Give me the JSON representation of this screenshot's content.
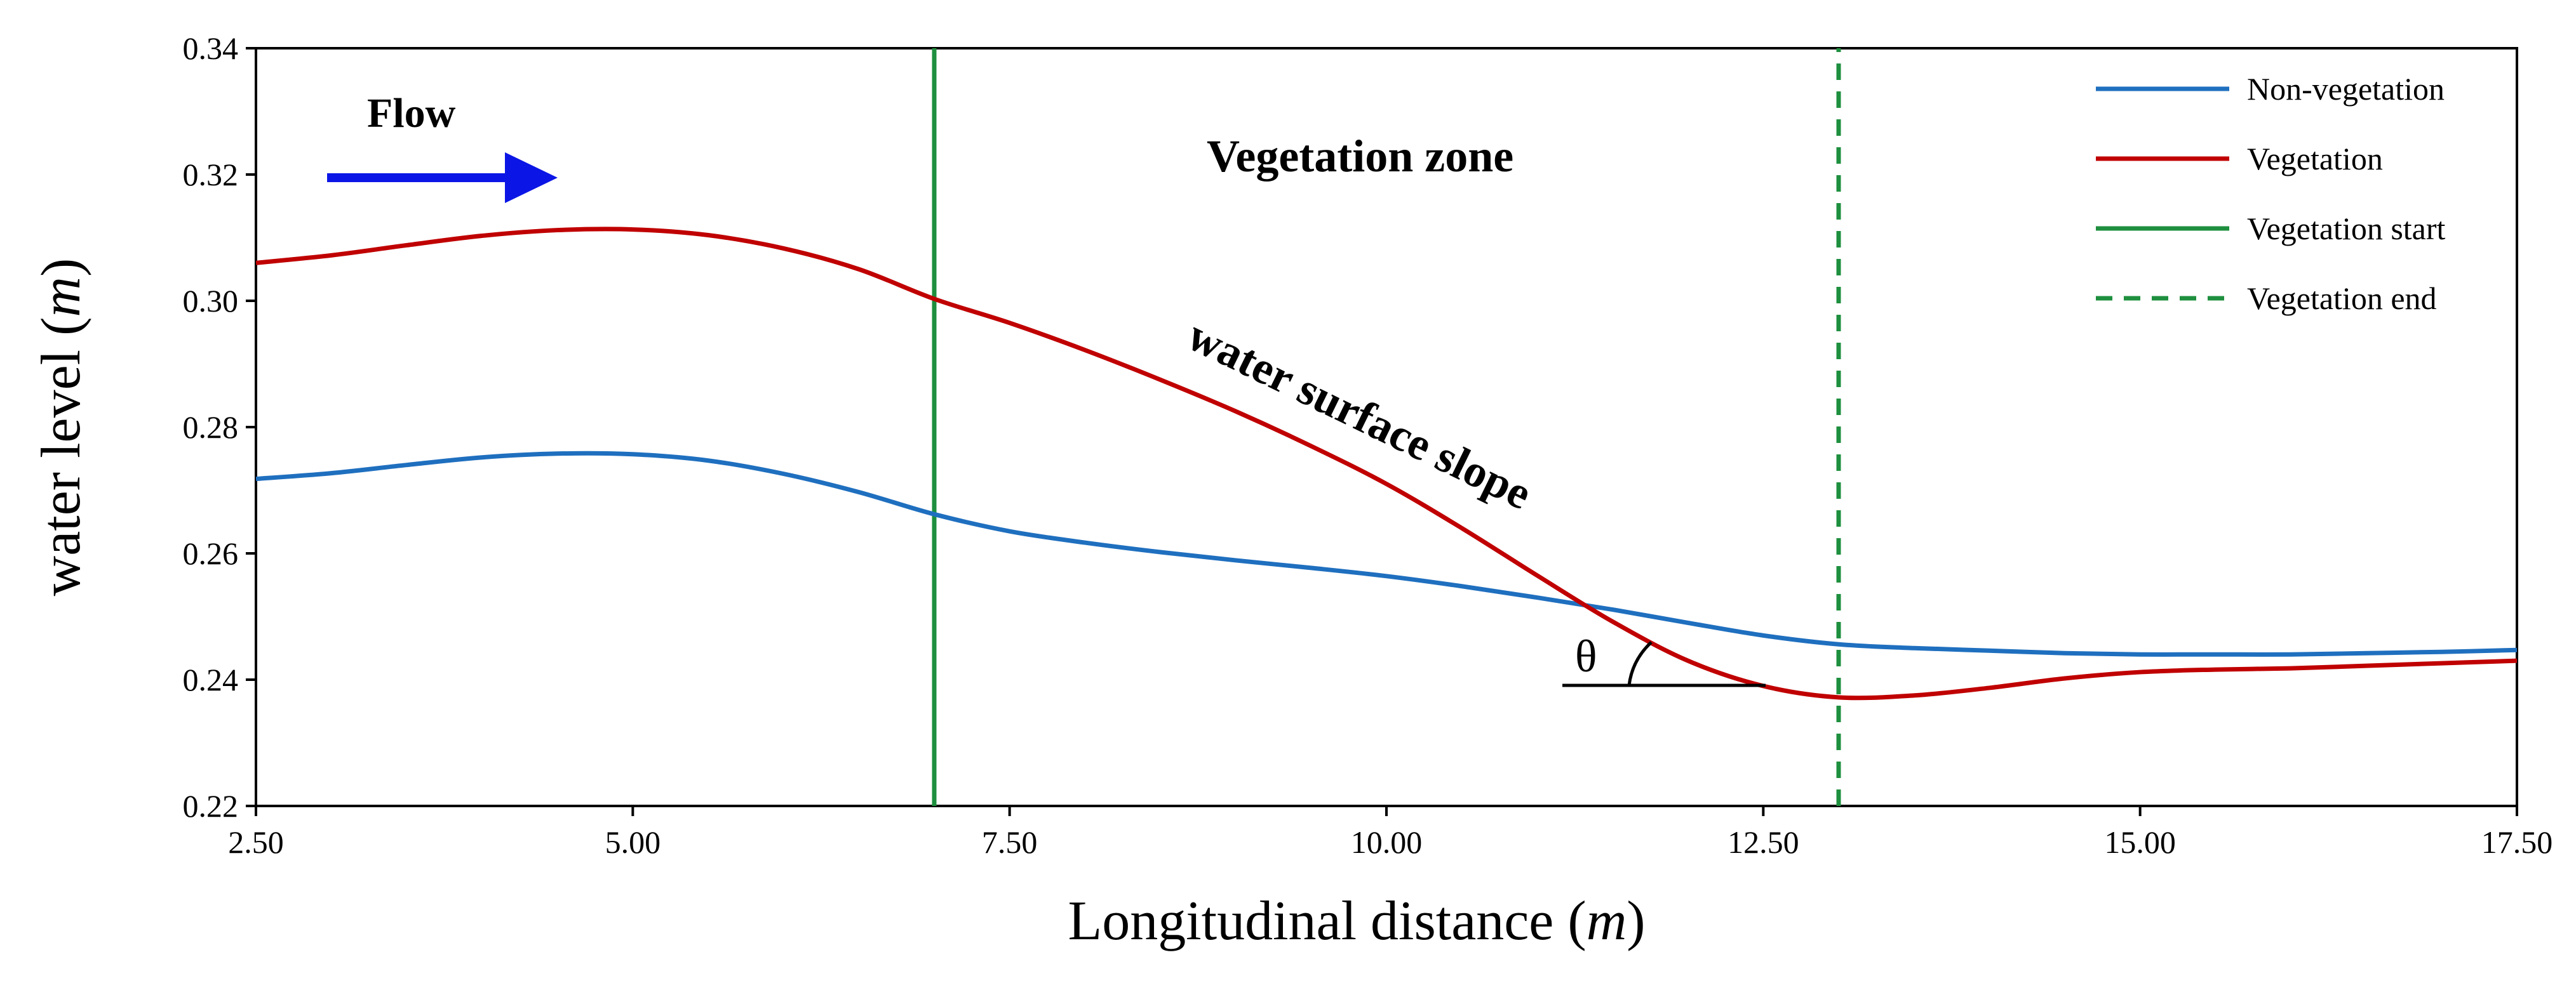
{
  "chart_data": {
    "type": "line",
    "xlabel": "Longitudinal distance",
    "xlabel_unit": "m",
    "ylabel": "water level",
    "ylabel_unit": "m",
    "xlim": [
      2.5,
      17.5
    ],
    "ylim": [
      0.22,
      0.34
    ],
    "x_ticks": [
      2.5,
      5.0,
      7.5,
      10.0,
      12.5,
      15.0,
      17.5
    ],
    "x_tick_labels": [
      "2.50",
      "5.00",
      "7.50",
      "10.00",
      "12.50",
      "15.00",
      "17.50"
    ],
    "y_ticks": [
      0.22,
      0.24,
      0.26,
      0.28,
      0.3,
      0.32,
      0.34
    ],
    "y_tick_labels": [
      "0.22",
      "0.24",
      "0.26",
      "0.28",
      "0.30",
      "0.32",
      "0.34"
    ],
    "grid": false,
    "legend_position": "top-right",
    "series": [
      {
        "name": "Non-vegetation",
        "color": "#1f6fbf",
        "style": "solid",
        "x": [
          2.5,
          3.0,
          3.5,
          4.0,
          4.5,
          5.0,
          5.5,
          6.0,
          6.5,
          7.0,
          7.5,
          8.0,
          8.5,
          9.0,
          9.5,
          10.0,
          10.5,
          11.0,
          11.5,
          12.0,
          12.5,
          13.0,
          13.5,
          14.0,
          14.5,
          15.0,
          15.5,
          16.0,
          16.5,
          17.0,
          17.5
        ],
        "y": [
          0.2718,
          0.2727,
          0.274,
          0.2752,
          0.2758,
          0.2757,
          0.2747,
          0.2726,
          0.2697,
          0.2662,
          0.2635,
          0.2617,
          0.2602,
          0.2589,
          0.2577,
          0.2564,
          0.2548,
          0.253,
          0.2511,
          0.249,
          0.247,
          0.2456,
          0.245,
          0.2446,
          0.2442,
          0.244,
          0.244,
          0.244,
          0.2442,
          0.2444,
          0.2447
        ]
      },
      {
        "name": "Vegetation",
        "color": "#c00000",
        "style": "solid",
        "x": [
          2.5,
          3.0,
          3.5,
          4.0,
          4.5,
          5.0,
          5.5,
          6.0,
          6.5,
          7.0,
          7.5,
          8.0,
          8.5,
          9.0,
          9.5,
          10.0,
          10.5,
          11.0,
          11.5,
          12.0,
          12.5,
          13.0,
          13.5,
          14.0,
          14.5,
          15.0,
          15.5,
          16.0,
          16.5,
          17.0,
          17.5
        ],
        "y": [
          0.306,
          0.3072,
          0.3088,
          0.3103,
          0.3112,
          0.3113,
          0.3104,
          0.3083,
          0.305,
          0.3003,
          0.2965,
          0.2922,
          0.2875,
          0.2825,
          0.277,
          0.271,
          0.264,
          0.2565,
          0.2492,
          0.243,
          0.239,
          0.2372,
          0.2375,
          0.2387,
          0.2402,
          0.2412,
          0.2416,
          0.2418,
          0.2422,
          0.2426,
          0.243
        ]
      },
      {
        "name": "Vegetation start",
        "color": "#1e8f3e",
        "style": "solid",
        "x": [
          7.0,
          7.0
        ],
        "y": [
          0.22,
          0.34
        ]
      },
      {
        "name": "Vegetation end",
        "color": "#1e8f3e",
        "style": "dashed",
        "x": [
          13.0,
          13.0
        ],
        "y": [
          0.22,
          0.34
        ]
      }
    ],
    "annotations": {
      "flow_label": "Flow",
      "flow_arrow_color": "#0b16e6",
      "zone_label": "Vegetation zone",
      "slope_label": "water surface slope",
      "angle_label": "θ"
    }
  }
}
